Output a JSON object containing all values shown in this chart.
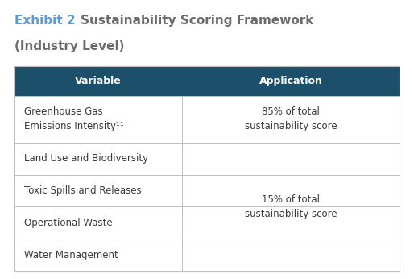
{
  "title_exhibit": "Exhibit 2 ",
  "title_main": "Sustainability Scoring Framework",
  "title_sub": "(Industry Level)",
  "title_color_exhibit": "#5b9bd5",
  "title_color_main": "#6b6b6b",
  "header_bg_color": "#1b4f6a",
  "header_text_color": "#ffffff",
  "header_col1": "Variable",
  "header_col2": "Application",
  "row_separator_color": "#c0c0c0",
  "bg_color": "#ffffff",
  "rows": [
    {
      "col1": "Greenhouse Gas\nEmissions Intensity¹¹",
      "col2": "85% of total\nsustainability score",
      "span_right": false
    },
    {
      "col1": "Land Use and Biodiversity",
      "col2": null,
      "span_right": true
    },
    {
      "col1": "Toxic Spills and Releases",
      "col2": null,
      "span_right": true
    },
    {
      "col1": "Operational Waste",
      "col2": null,
      "span_right": true
    },
    {
      "col1": "Water Management",
      "col2": null,
      "span_right": true
    }
  ],
  "span_label": "15% of total\nsustainability score",
  "cell_text_color": "#3a3a3a",
  "title_fontsize": 11,
  "header_fontsize": 9,
  "cell_fontsize": 8.5,
  "figsize": [
    5.14,
    3.46
  ],
  "dpi": 100
}
